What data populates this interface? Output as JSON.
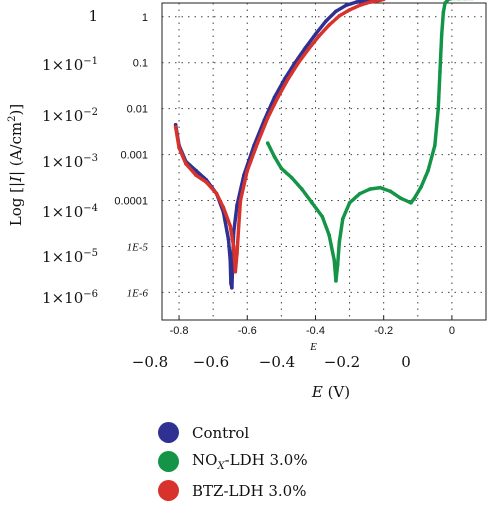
{
  "chart_data": {
    "type": "scatter",
    "title": "",
    "xlabel": "E (V)",
    "ylabel": "Log [|I| (A/cm2)]",
    "x_inner_label": "E",
    "inner_x_ticks": [
      "-0.8",
      "-0.6",
      "-0.4",
      "-0.2",
      "0"
    ],
    "outer_x_ticks": [
      "−0.8",
      "−0.6",
      "−0.4",
      "−0.2",
      "0"
    ],
    "inner_y_ticks": [
      "1",
      "0.1",
      "0.01",
      "0.001",
      "0.0001",
      "1E-5",
      "1E-6"
    ],
    "outer_y_ticks": [
      "1",
      "1×10−1",
      "1×10−2",
      "1×10−3",
      "1×10−4",
      "1×10−5",
      "1×10−6"
    ],
    "xlim": [
      -0.85,
      0.1
    ],
    "ylim": [
      -6.6,
      0.3
    ],
    "grid": true,
    "legend_position": "bottom",
    "series": [
      {
        "name": "Control",
        "color": "#2e3192",
        "x": [
          -0.81,
          -0.8,
          -0.78,
          -0.75,
          -0.72,
          -0.69,
          -0.67,
          -0.655,
          -0.65,
          -0.648,
          -0.645,
          -0.64,
          -0.63,
          -0.61,
          -0.58,
          -0.55,
          -0.52,
          -0.49,
          -0.46,
          -0.43,
          -0.4,
          -0.37,
          -0.34,
          -0.31,
          -0.28,
          -0.25,
          -0.22,
          -0.2
        ],
        "y": [
          -2.35,
          -2.8,
          -3.15,
          -3.35,
          -3.55,
          -3.85,
          -4.25,
          -4.85,
          -5.3,
          -5.8,
          -5.9,
          -4.7,
          -4.1,
          -3.45,
          -2.8,
          -2.25,
          -1.75,
          -1.35,
          -1.0,
          -0.68,
          -0.38,
          -0.1,
          0.12,
          0.25,
          0.32,
          0.36,
          0.38,
          0.38
        ]
      },
      {
        "name": "NOX-LDH 3.0%",
        "color": "#139447",
        "x": [
          -0.54,
          -0.52,
          -0.5,
          -0.47,
          -0.44,
          -0.41,
          -0.38,
          -0.36,
          -0.345,
          -0.34,
          -0.335,
          -0.33,
          -0.32,
          -0.3,
          -0.27,
          -0.24,
          -0.21,
          -0.18,
          -0.15,
          -0.12,
          -0.11,
          -0.09,
          -0.07,
          -0.05,
          -0.04,
          -0.035,
          -0.03,
          -0.025,
          -0.02,
          -0.01,
          0.0,
          0.02,
          0.04,
          0.06
        ],
        "y": [
          -2.75,
          -3.05,
          -3.3,
          -3.5,
          -3.75,
          -4.05,
          -4.35,
          -4.75,
          -5.3,
          -5.75,
          -5.4,
          -4.9,
          -4.4,
          -4.05,
          -3.85,
          -3.75,
          -3.72,
          -3.8,
          -3.95,
          -4.05,
          -3.95,
          -3.7,
          -3.35,
          -2.8,
          -2.0,
          -1.2,
          -0.4,
          0.1,
          0.3,
          0.38,
          0.4,
          0.4,
          0.4,
          0.4
        ]
      },
      {
        "name": "BTZ-LDH 3.0%",
        "color": "#d8322c",
        "x": [
          -0.81,
          -0.8,
          -0.78,
          -0.75,
          -0.72,
          -0.69,
          -0.67,
          -0.65,
          -0.64,
          -0.635,
          -0.63,
          -0.625,
          -0.62,
          -0.6,
          -0.57,
          -0.54,
          -0.51,
          -0.48,
          -0.45,
          -0.42,
          -0.39,
          -0.36,
          -0.33,
          -0.3,
          -0.27,
          -0.24,
          -0.21,
          -0.2
        ],
        "y": [
          -2.4,
          -2.85,
          -3.2,
          -3.45,
          -3.6,
          -3.85,
          -4.15,
          -4.55,
          -5.0,
          -5.55,
          -5.15,
          -4.55,
          -4.0,
          -3.35,
          -2.75,
          -2.2,
          -1.75,
          -1.35,
          -1.0,
          -0.7,
          -0.42,
          -0.18,
          0.02,
          0.15,
          0.25,
          0.32,
          0.36,
          0.38
        ]
      }
    ]
  },
  "legend": {
    "items": [
      {
        "label_html": "Control",
        "color": "#2e3192"
      },
      {
        "label_html": "NOX-LDH 3.0%",
        "color": "#139447"
      },
      {
        "label_html": "BTZ-LDH 3.0%",
        "color": "#d8322c"
      }
    ]
  }
}
